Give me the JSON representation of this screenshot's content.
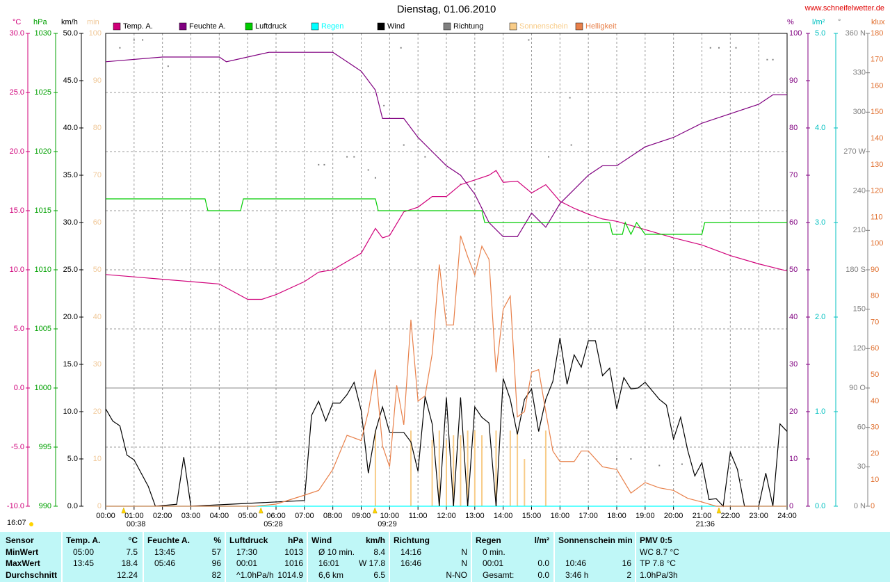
{
  "chart_data": {
    "type": "line",
    "title": "Dienstag, 01.06.2010",
    "source": "www.schneifelwetter.de",
    "xlim": [
      0,
      24
    ],
    "xticks": [
      {
        "value": 0,
        "label": "00:00"
      },
      {
        "value": 1,
        "label": "01:00"
      },
      {
        "value": 2,
        "label": "02:00"
      },
      {
        "value": 3,
        "label": "03:00"
      },
      {
        "value": 4,
        "label": "04:00"
      },
      {
        "value": 5,
        "label": "05:00"
      },
      {
        "value": 6,
        "label": "06:00"
      },
      {
        "value": 7,
        "label": "07:00"
      },
      {
        "value": 8,
        "label": "08:00"
      },
      {
        "value": 9,
        "label": "09:00"
      },
      {
        "value": 10,
        "label": "10:00"
      },
      {
        "value": 11,
        "label": "11:00"
      },
      {
        "value": 12,
        "label": "12:00"
      },
      {
        "value": 13,
        "label": "13:00"
      },
      {
        "value": 14,
        "label": "14:00"
      },
      {
        "value": 15,
        "label": "15:00"
      },
      {
        "value": 16,
        "label": "16:00"
      },
      {
        "value": 17,
        "label": "17:00"
      },
      {
        "value": 18,
        "label": "18:00"
      },
      {
        "value": 19,
        "label": "19:00"
      },
      {
        "value": 20,
        "label": "20:00"
      },
      {
        "value": 21,
        "label": "21:00"
      },
      {
        "value": 22,
        "label": "22:00"
      },
      {
        "value": 23,
        "label": "23:00"
      },
      {
        "value": 24,
        "label": "24:00"
      }
    ],
    "grid": true,
    "left_note": "16:07",
    "markers": [
      {
        "value": 0.633,
        "label": "00:38"
      },
      {
        "value": 5.467,
        "label": "05:28"
      },
      {
        "value": 9.483,
        "label": "09:29"
      },
      {
        "value": 21.6,
        "label": "21:36"
      }
    ],
    "left_axes": [
      {
        "unit": "°C",
        "color": "#d0007a",
        "lim": [
          -10,
          30
        ],
        "ticks": [
          {
            "value": -10,
            "label": "-10.0"
          },
          {
            "value": -5,
            "label": "-5.0"
          },
          {
            "value": 0,
            "label": "0.0"
          },
          {
            "value": 5,
            "label": "5.0"
          },
          {
            "value": 10,
            "label": "10.0"
          },
          {
            "value": 15,
            "label": "15.0"
          },
          {
            "value": 20,
            "label": "20.0"
          },
          {
            "value": 25,
            "label": "25.0"
          },
          {
            "value": 30,
            "label": "30.0"
          }
        ]
      },
      {
        "unit": "hPa",
        "color": "#00a000",
        "lim": [
          990,
          1030
        ],
        "ticks": [
          990,
          995,
          1000,
          1005,
          1010,
          1015,
          1020,
          1025,
          1030
        ]
      },
      {
        "unit": "km/h",
        "color": "#000000",
        "lim": [
          0,
          50
        ],
        "ticks": [
          {
            "value": 0,
            "label": "0.0"
          },
          {
            "value": 5,
            "label": "5.0"
          },
          {
            "value": 10,
            "label": "10.0"
          },
          {
            "value": 15,
            "label": "15.0"
          },
          {
            "value": 20,
            "label": "20.0"
          },
          {
            "value": 25,
            "label": "25.0"
          },
          {
            "value": 30,
            "label": "30.0"
          },
          {
            "value": 35,
            "label": "35.0"
          },
          {
            "value": 40,
            "label": "40.0"
          },
          {
            "value": 45,
            "label": "45.0"
          },
          {
            "value": 50,
            "label": "50.0"
          }
        ]
      },
      {
        "unit": "min",
        "color": "#f0c898",
        "lim": [
          0,
          100
        ],
        "ticks": [
          0,
          10,
          20,
          30,
          40,
          50,
          60,
          70,
          80,
          90,
          100
        ]
      }
    ],
    "right_axes": [
      {
        "unit": "%",
        "color": "#800080",
        "lim": [
          0,
          100
        ],
        "ticks": [
          0,
          10,
          20,
          30,
          40,
          50,
          60,
          70,
          80,
          90,
          100
        ]
      },
      {
        "unit": "l/m²",
        "color": "#00c0c0",
        "lim": [
          0,
          5
        ],
        "ticks": [
          {
            "value": 0,
            "label": "0.0"
          },
          {
            "value": 1,
            "label": "1.0"
          },
          {
            "value": 2,
            "label": "2.0"
          },
          {
            "value": 3,
            "label": "3.0"
          },
          {
            "value": 4,
            "label": "4.0"
          },
          {
            "value": 5,
            "label": "5.0"
          }
        ]
      },
      {
        "unit": "°",
        "color": "#808080",
        "lim": [
          0,
          360
        ],
        "ticks": [
          {
            "value": 0,
            "label": "0 N"
          },
          30,
          60,
          {
            "value": 90,
            "label": "90 O"
          },
          120,
          150,
          {
            "value": 180,
            "label": "180 S"
          },
          210,
          240,
          {
            "value": 270,
            "label": "270 W"
          },
          300,
          330,
          {
            "value": 360,
            "label": "360 N"
          }
        ]
      },
      {
        "unit": "klux",
        "color": "#e07030",
        "lim": [
          0,
          180
        ],
        "ticks": [
          0,
          10,
          20,
          30,
          40,
          50,
          60,
          70,
          80,
          90,
          100,
          110,
          120,
          130,
          140,
          150,
          160,
          170,
          180
        ]
      }
    ],
    "series": [
      {
        "name": "Temp. A.",
        "color": "#d0007a",
        "axis": "°C",
        "type": "line",
        "x": [
          0,
          1,
          2,
          3,
          4,
          5,
          5.5,
          6,
          7,
          7.5,
          8,
          9,
          9.5,
          9.75,
          10,
          10.5,
          11,
          11.5,
          12,
          12.5,
          13,
          13.5,
          13.75,
          14,
          14.5,
          15,
          15.5,
          16,
          16.5,
          17,
          17.5,
          18,
          19,
          20,
          21,
          22,
          23,
          24
        ],
        "values": [
          9.6,
          9.4,
          9.2,
          9.0,
          8.8,
          7.5,
          7.5,
          7.9,
          9.0,
          9.8,
          10.0,
          11.4,
          13.5,
          12.7,
          12.9,
          14.9,
          15.3,
          16.2,
          16.2,
          17.2,
          17.6,
          18.0,
          18.4,
          17.4,
          17.5,
          16.5,
          17.2,
          15.8,
          15.2,
          14.7,
          14.3,
          14.1,
          13.4,
          12.7,
          12.1,
          11.2,
          10.5,
          9.9
        ]
      },
      {
        "name": "Feuchte A.",
        "color": "#800080",
        "axis": "%",
        "type": "line",
        "x": [
          0,
          2,
          4,
          4.25,
          5,
          5.75,
          8,
          8.5,
          9,
          9.5,
          9.75,
          10.5,
          11,
          11.5,
          12,
          12.5,
          13,
          13.5,
          14,
          14.5,
          15,
          15.5,
          16,
          16.5,
          17,
          17.5,
          18,
          19,
          20,
          21,
          22,
          23,
          23.5,
          24
        ],
        "values": [
          94,
          95,
          95,
          94,
          95,
          96,
          96,
          94,
          92,
          88,
          82,
          82,
          78,
          75,
          72,
          70,
          66,
          60,
          57,
          57,
          62,
          59,
          64,
          67,
          70,
          72,
          72,
          76,
          78,
          81,
          83,
          85,
          87,
          87
        ]
      },
      {
        "name": "Luftdruck",
        "color": "#00cc00",
        "axis": "hPa",
        "type": "line",
        "x": [
          0,
          3.5,
          3.6,
          4.75,
          4.85,
          9.5,
          9.6,
          13.25,
          13.35,
          17.75,
          17.85,
          18.2,
          18.3,
          18.5,
          18.7,
          19,
          21,
          21.1,
          24
        ],
        "values": [
          1016,
          1016,
          1015,
          1015,
          1016,
          1016,
          1015,
          1015,
          1014,
          1014,
          1013,
          1013,
          1014,
          1013,
          1014,
          1013,
          1013,
          1014,
          1014
        ]
      },
      {
        "name": "Regen",
        "color": "#00ffff",
        "axis": "l/m²",
        "type": "line",
        "x": [
          0,
          24
        ],
        "values": [
          0,
          0
        ]
      },
      {
        "name": "Wind",
        "color": "#000000",
        "axis": "km/h",
        "type": "line",
        "x": [
          0,
          0.25,
          0.5,
          0.75,
          1,
          1.5,
          1.75,
          2.5,
          2.75,
          3,
          7,
          7.25,
          7.5,
          7.75,
          8,
          8.25,
          8.5,
          8.75,
          9,
          9.25,
          9.5,
          9.75,
          10,
          10.5,
          10.75,
          11,
          11.25,
          11.5,
          11.75,
          12,
          12.25,
          12.5,
          12.75,
          13,
          13.25,
          13.5,
          13.75,
          14,
          14.25,
          14.5,
          14.75,
          15,
          15.25,
          15.5,
          15.75,
          16,
          16.25,
          16.5,
          16.75,
          17,
          17.25,
          17.5,
          17.75,
          18,
          18.25,
          18.5,
          18.75,
          19,
          19.5,
          19.75,
          20,
          20.25,
          20.5,
          20.75,
          21,
          21.25,
          21.5,
          21.75,
          22,
          22.25,
          22.5,
          23,
          23.25,
          23.5,
          23.75,
          24
        ],
        "values": [
          10.3,
          9.0,
          8.5,
          5.4,
          4.9,
          2.1,
          0,
          0.2,
          5.2,
          0,
          0.6,
          9.6,
          11.1,
          9.0,
          10.9,
          10.9,
          11.8,
          13.1,
          10.1,
          3.5,
          7.9,
          10.5,
          7.8,
          7.8,
          6.8,
          3.7,
          11.6,
          8.7,
          0,
          11.5,
          0,
          11.5,
          0,
          10.5,
          9.4,
          8.8,
          0,
          13.5,
          11.3,
          7.6,
          11.3,
          12.4,
          7.9,
          11.3,
          13.2,
          17.8,
          12.9,
          16.0,
          14.7,
          17.5,
          17.5,
          13.8,
          14.6,
          10.3,
          13.6,
          12.4,
          12.5,
          13.1,
          11.3,
          10.7,
          7.1,
          9.4,
          5.9,
          3.2,
          4.6,
          0.7,
          0.8,
          0,
          5.7,
          3.9,
          0,
          0,
          3.5,
          0,
          8.7,
          7.9
        ]
      },
      {
        "name": "Richtung",
        "color": "#808080",
        "axis": "°",
        "type": "scatter",
        "x": [
          0.5,
          1.0,
          1.3,
          2.2,
          7.5,
          7.7,
          8.5,
          8.75,
          9.25,
          9.5,
          9.8,
          10.4,
          10.5,
          11.25,
          12.5,
          13.0,
          14.9,
          15.6,
          16.35,
          16.4,
          18,
          18.5,
          19.5,
          20.3,
          21.3,
          21.6,
          22.2,
          22.4,
          23.3,
          23.5
        ],
        "values": [
          349,
          355,
          355,
          335,
          260,
          260,
          266,
          266,
          256,
          250,
          305,
          349,
          275,
          266,
          245,
          245,
          355,
          266,
          311,
          275,
          36,
          36,
          31,
          32,
          349,
          349,
          349,
          20,
          340,
          340
        ]
      },
      {
        "name": "Sonnenschein",
        "color": "#f8cc88",
        "axis": "min",
        "type": "bar",
        "x": [
          9.5,
          10.75,
          11.5,
          11.75,
          12,
          12.25,
          12.5,
          12.75,
          13,
          13.25,
          13.75,
          14.25,
          14.5,
          14.75,
          15.5
        ],
        "values": [
          16,
          16,
          14,
          16,
          14,
          15,
          15,
          16,
          16,
          15,
          16,
          16,
          16,
          10,
          16
        ]
      },
      {
        "name": "Helligkeit",
        "color": "#e8804a",
        "axis": "klux",
        "type": "line",
        "x": [
          0,
          5.25,
          6,
          7,
          7.5,
          8,
          8.5,
          9,
          9.25,
          9.5,
          9.75,
          10,
          10.25,
          10.5,
          10.75,
          11,
          11.25,
          11.5,
          11.75,
          12,
          12.25,
          12.5,
          12.75,
          13,
          13.25,
          13.5,
          13.75,
          14,
          14.25,
          14.5,
          14.75,
          15,
          15.25,
          15.5,
          15.75,
          16,
          16.5,
          16.75,
          17,
          17.5,
          18,
          18.5,
          19,
          19.5,
          20,
          20.5,
          21,
          21.5,
          24
        ],
        "values": [
          0,
          0,
          0.8,
          4.2,
          6,
          14,
          27,
          25,
          36,
          52,
          23,
          15,
          46,
          31,
          71,
          40,
          42,
          58,
          92,
          69,
          69,
          103,
          95,
          88,
          99,
          94,
          51,
          75,
          80,
          34,
          36,
          51,
          52,
          36,
          21,
          17,
          17,
          21,
          21,
          15,
          14,
          5,
          9,
          7,
          6,
          3,
          1.6,
          0,
          0
        ]
      }
    ]
  },
  "table": {
    "header": [
      [
        "Sensor"
      ],
      [
        "Temp. A.",
        "°C"
      ],
      [
        "Feuchte A.",
        "%"
      ],
      [
        "Luftdruck",
        "hPa"
      ],
      [
        "Wind",
        "km/h"
      ],
      [
        "Richtung"
      ],
      [
        "Regen",
        "l/m²"
      ],
      [
        "Sonnenschein min"
      ],
      [
        "PMV 0:5"
      ]
    ],
    "rows": [
      [
        [
          "MinWert"
        ],
        [
          "05:00",
          "7.5"
        ],
        [
          "13:45",
          "57"
        ],
        [
          "17:30",
          "1013"
        ],
        [
          "Ø 10 min.",
          "8.4"
        ],
        [
          "14:16",
          "N"
        ],
        [
          "0 min."
        ],
        [],
        [
          "WC 8.7 °C"
        ]
      ],
      [
        [
          "MaxWert"
        ],
        [
          "13:45",
          "18.4"
        ],
        [
          "05:46",
          "96"
        ],
        [
          "00:01",
          "1016"
        ],
        [
          "16:01",
          "W 17.8"
        ],
        [
          "16:46",
          "N"
        ],
        [
          "00:01",
          "0.0"
        ],
        [
          "10:46",
          "16"
        ],
        [
          "TP 7.8 °C"
        ]
      ],
      [
        [
          "Durchschnitt"
        ],
        [
          "",
          "12.24"
        ],
        [
          "",
          "82"
        ],
        [
          "^1.0hPa/h",
          "1014.9"
        ],
        [
          "6,6 km",
          "6.5"
        ],
        [
          "",
          "N-NO"
        ],
        [
          "Gesamt:",
          "0.0"
        ],
        [
          "3:46 h",
          "2"
        ],
        [
          "1.0hPa/3h"
        ]
      ]
    ]
  }
}
